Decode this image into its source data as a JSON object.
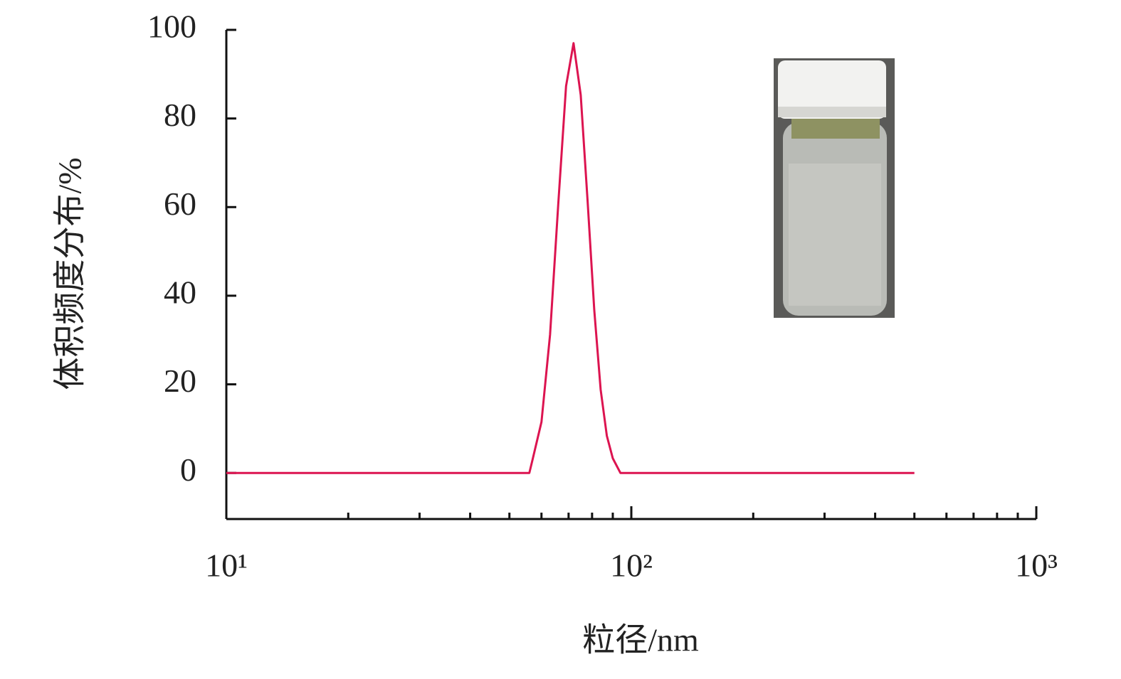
{
  "chart_data": {
    "type": "line",
    "xlabel": "粒径/nm",
    "ylabel": "体积频度分布/%",
    "x": [
      10,
      56,
      57,
      60,
      63,
      66,
      69,
      72,
      75,
      78,
      81,
      84,
      87,
      90,
      94,
      500
    ],
    "series": [
      {
        "name": "体积频度分布",
        "color": "#dc1450",
        "values": [
          0,
          0,
          2.9,
          11.5,
          31.2,
          60.6,
          87.3,
          97,
          85.3,
          61.3,
          36.8,
          18.8,
          8.4,
          3.3,
          0,
          0
        ]
      }
    ],
    "xscale": "log",
    "xlim": [
      10,
      1000
    ],
    "xticks": [
      {
        "value": 10,
        "label": "10¹"
      },
      {
        "value": 100,
        "label": "10²"
      },
      {
        "value": 1000,
        "label": "10³"
      }
    ],
    "xminorticks": [
      20,
      30,
      40,
      50,
      60,
      70,
      80,
      90,
      200,
      300,
      400,
      500,
      600,
      700,
      800,
      900
    ],
    "ylim": [
      -10.4,
      100
    ],
    "yticks": [
      0,
      20,
      40,
      60,
      80,
      100
    ],
    "grid": false
  }
}
